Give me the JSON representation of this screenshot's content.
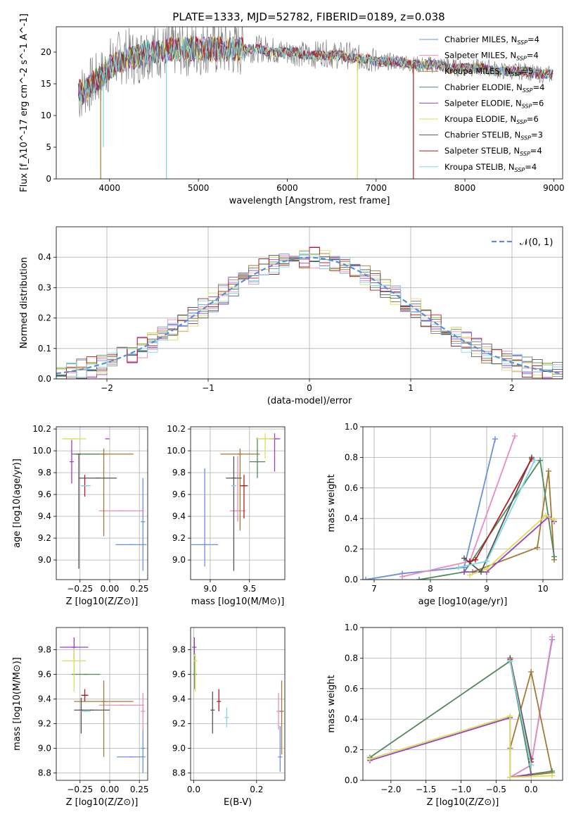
{
  "figure_title": "PLATE=1333, MJD=52782, FIBERID=0189, z=0.038",
  "models": [
    {
      "name": "Chabrier MILES",
      "nssp": "4",
      "color": "#6c8fde"
    },
    {
      "name": "Salpeter MILES",
      "nssp": "4",
      "color": "#e88bc0"
    },
    {
      "name": "Kroupa MILES",
      "nssp": "5",
      "color": "#a27a32"
    },
    {
      "name": "Chabrier ELODIE",
      "nssp": "4",
      "color": "#4f8a5f"
    },
    {
      "name": "Salpeter ELODIE",
      "nssp": "6",
      "color": "#9a3fc0"
    },
    {
      "name": "Kroupa ELODIE",
      "nssp": "6",
      "color": "#d9df5a"
    },
    {
      "name": "Chabrier STELIB",
      "nssp": "3",
      "color": "#555555"
    },
    {
      "name": "Salpeter STELIB",
      "nssp": "4",
      "color": "#b01e1e"
    },
    {
      "name": "Kroupa STELIB",
      "nssp": "4",
      "color": "#7fd8e6"
    }
  ],
  "chart_data": [
    {
      "id": "spectrum",
      "type": "line",
      "xlabel": "wavelength [Angstrom, rest frame]",
      "ylabel": "Flux [f_λ10^-17 erg cm^-2 s^-1 A^-1]",
      "xlim": [
        3400,
        9100
      ],
      "ylim": [
        0,
        24
      ],
      "xticks": [
        4000,
        5000,
        6000,
        7000,
        8000,
        9000
      ],
      "yticks": [
        0,
        5,
        10,
        15,
        20
      ],
      "data_color": "#808080",
      "data_x": [
        3650,
        3700,
        3800,
        3900,
        4000,
        4100,
        4200,
        4300,
        4400,
        4500,
        4600,
        4700,
        4800,
        4900,
        5000,
        5100,
        5200,
        5300,
        5400,
        5500,
        5600,
        5700,
        5800,
        5900,
        6000,
        6100,
        6200,
        6300,
        6400,
        6500,
        6600,
        6700,
        6800,
        6900,
        7000,
        7100,
        7200,
        7300,
        7400,
        7500,
        7600,
        7700,
        7800,
        7900,
        8000,
        8100,
        8200,
        8300,
        8400,
        8500,
        8600,
        8700,
        8800,
        8900,
        9000
      ],
      "data_y": [
        13,
        14,
        15,
        16,
        18,
        19,
        19.5,
        19,
        20,
        20.5,
        20,
        20.5,
        20.5,
        20.5,
        20.5,
        21,
        20.5,
        20.5,
        20.5,
        20.5,
        20.5,
        20.5,
        20.5,
        20,
        20,
        20,
        19.5,
        19.5,
        20,
        19.5,
        19.5,
        19.5,
        19,
        19,
        18.5,
        18.5,
        18.5,
        18.5,
        18,
        18,
        18,
        18,
        18,
        17.5,
        17.5,
        17.5,
        17.5,
        17.5,
        17,
        17,
        17,
        17,
        16.5,
        16.5,
        16.5
      ],
      "model_x": [
        3650,
        3700,
        3800,
        3900,
        4000,
        4100,
        4200,
        4300,
        4400,
        4500,
        4600,
        4700,
        4800,
        4900,
        5000,
        5100,
        5200,
        5300,
        5400,
        5500,
        5600,
        5700,
        5800,
        5900,
        6000,
        6100,
        6200,
        6300,
        6400,
        6500,
        6600,
        6700,
        6800,
        6900,
        7000,
        7100,
        7200,
        7300,
        7400,
        7500,
        7600,
        7700,
        7800,
        7900,
        8000,
        8100,
        8200,
        8300,
        8400,
        8500,
        8600,
        8700,
        8800,
        8900,
        9000
      ],
      "model_y": [
        14,
        13.5,
        15,
        16,
        17.5,
        18.5,
        19,
        19,
        20,
        20,
        20,
        20.5,
        20.5,
        20.5,
        20.5,
        20.5,
        20.5,
        20.5,
        20.5,
        20.5,
        20.5,
        20.5,
        20,
        20,
        20,
        20,
        19.5,
        19.5,
        19.5,
        19.5,
        19.5,
        19,
        19,
        19,
        18.5,
        18.5,
        18.5,
        18.5,
        18,
        18,
        18,
        18,
        17.5,
        17.5,
        17.5,
        17.5,
        17.5,
        17,
        17,
        17,
        17,
        17,
        16.5,
        16.5,
        16.5
      ],
      "dips": [
        {
          "model": 8,
          "x": 3930,
          "y": 5
        },
        {
          "model": 8,
          "x": 4640,
          "y": 0
        },
        {
          "model": 2,
          "x": 3900,
          "y": 0
        },
        {
          "model": 5,
          "x": 6790,
          "y": 0
        },
        {
          "model": 7,
          "x": 7420,
          "y": 0
        }
      ]
    },
    {
      "id": "residuals",
      "type": "line",
      "xlabel": "(data-model)/error",
      "ylabel": "Normed distribution",
      "xlim": [
        -2.5,
        2.5
      ],
      "ylim": [
        0,
        0.5
      ],
      "xticks": [
        -2,
        -1,
        0,
        1,
        2
      ],
      "yticks": [
        0.0,
        0.1,
        0.2,
        0.3,
        0.4
      ],
      "legend": "𝒩(0, 1)",
      "gaussian_color": "#5b8dd6"
    },
    {
      "id": "age_vs_Z",
      "type": "scatter",
      "xlabel": "Z [log10(Z/Z⊙)]",
      "ylabel": "age  [log10(age/yr)]",
      "xlim": [
        -0.45,
        0.32
      ],
      "ylim": [
        8.82,
        10.22
      ],
      "xticks": [
        -0.25,
        0.0,
        0.25
      ],
      "yticks": [
        9.0,
        9.2,
        9.4,
        9.6,
        9.8,
        10.0,
        10.2
      ],
      "points": [
        {
          "model": 0,
          "x": 0.18,
          "y": 9.14,
          "xerr": 0.13,
          "yerr": [
            0,
            0
          ]
        },
        {
          "model": 0,
          "x": 0.28,
          "y": 9.35,
          "xerr": 0.0,
          "yerr": [
            0.45,
            0.4
          ]
        },
        {
          "model": 1,
          "x": 0.1,
          "y": 9.45,
          "xerr": 0.19,
          "yerr": [
            0,
            0
          ]
        },
        {
          "model": 2,
          "x": -0.05,
          "y": 9.97,
          "xerr": 0.25,
          "yerr": [
            0.75,
            0.05
          ]
        },
        {
          "model": 3,
          "x": -0.2,
          "y": 9.97,
          "xerr": 0.12,
          "yerr": [
            0,
            0
          ]
        },
        {
          "model": 4,
          "x": -0.02,
          "y": 10.11,
          "xerr": 0.0,
          "yerr": [
            0.0,
            0.0
          ]
        },
        {
          "model": 4,
          "x": -0.32,
          "y": 9.9,
          "xerr": 0.0,
          "yerr": [
            0.2,
            0.2
          ]
        },
        {
          "model": 5,
          "x": -0.3,
          "y": 10.11,
          "xerr": 0.1,
          "yerr": [
            0,
            0
          ]
        },
        {
          "model": 6,
          "x": -0.26,
          "y": 9.97,
          "xerr": 0.0,
          "yerr": [
            1.05,
            0.0
          ]
        },
        {
          "model": 6,
          "x": -0.1,
          "y": 9.75,
          "xerr": 0.16,
          "yerr": [
            0,
            0
          ]
        },
        {
          "model": 7,
          "x": -0.21,
          "y": 9.68,
          "xerr": 0.03,
          "yerr": [
            0.1,
            0.1
          ]
        },
        {
          "model": 8,
          "x": -0.2,
          "y": 9.68,
          "xerr": 0.04,
          "yerr": [
            0.0,
            0.0
          ]
        }
      ]
    },
    {
      "id": "age_vs_mass",
      "type": "scatter",
      "xlabel": "mass [log10(M/M⊙)]",
      "xlim": [
        8.75,
        9.95
      ],
      "ylim": [
        8.82,
        10.22
      ],
      "xticks": [
        9.0,
        9.5
      ],
      "yticks": [
        9.0,
        9.2,
        9.4,
        9.6,
        9.8,
        10.0,
        10.2
      ],
      "points": [
        {
          "model": 0,
          "x": 8.93,
          "y": 9.14,
          "xerr": 0.17,
          "yerr": [
            0.2,
            0.7
          ]
        },
        {
          "model": 1,
          "x": 9.35,
          "y": 9.45,
          "xerr": 0.1,
          "yerr": [
            0.1,
            0.5
          ]
        },
        {
          "model": 2,
          "x": 9.38,
          "y": 9.97,
          "xerr": 0.25,
          "yerr": [
            0.7,
            0.05
          ]
        },
        {
          "model": 3,
          "x": 9.6,
          "y": 9.9,
          "xerr": 0.1,
          "yerr": [
            0.15,
            0.22
          ]
        },
        {
          "model": 4,
          "x": 9.82,
          "y": 10.11,
          "xerr": 0.07,
          "yerr": [
            0.3,
            0.05
          ]
        },
        {
          "model": 5,
          "x": 9.7,
          "y": 10.11,
          "xerr": 0.12,
          "yerr": [
            0.18,
            0.05
          ]
        },
        {
          "model": 6,
          "x": 9.3,
          "y": 9.75,
          "xerr": 0.1,
          "yerr": [
            0.85,
            0.2
          ]
        },
        {
          "model": 7,
          "x": 9.43,
          "y": 9.68,
          "xerr": 0.05,
          "yerr": [
            0.3,
            0.1
          ]
        },
        {
          "model": 8,
          "x": 9.3,
          "y": 9.68,
          "xerr": 0.03,
          "yerr": [
            0.0,
            0.0
          ]
        }
      ]
    },
    {
      "id": "mass_weight_vs_age",
      "type": "line",
      "xlabel": "age  [log10(age/yr)]",
      "ylabel": "mass weight",
      "xlim": [
        6.8,
        10.35
      ],
      "ylim": [
        0,
        1
      ],
      "xticks": [
        7,
        8,
        9,
        10
      ],
      "yticks": [
        0.0,
        0.2,
        0.4,
        0.6,
        0.8,
        1.0
      ],
      "series": [
        {
          "model": 0,
          "x": [
            6.85,
            7.5,
            8.6,
            9.15
          ],
          "y": [
            0.0,
            0.04,
            0.08,
            0.92
          ]
        },
        {
          "model": 1,
          "x": [
            7.5,
            8.7,
            9.5
          ],
          "y": [
            0.02,
            0.12,
            0.94
          ]
        },
        {
          "model": 2,
          "x": [
            8.75,
            9.9,
            10.1,
            10.2
          ],
          "y": [
            0.05,
            0.21,
            0.71,
            0.13
          ]
        },
        {
          "model": 3,
          "x": [
            7.8,
            8.6,
            9.95,
            10.2
          ],
          "y": [
            0.0,
            0.05,
            0.78,
            0.15
          ]
        },
        {
          "model": 4,
          "x": [
            8.6,
            9.0,
            10.1,
            10.2
          ],
          "y": [
            0.05,
            0.05,
            0.41,
            0.38
          ]
        },
        {
          "model": 5,
          "x": [
            8.7,
            9.0,
            10.05,
            10.2
          ],
          "y": [
            0.03,
            0.07,
            0.42,
            0.39
          ]
        },
        {
          "model": 6,
          "x": [
            8.6,
            8.9,
            9.8
          ],
          "y": [
            0.14,
            0.05,
            0.8
          ]
        },
        {
          "model": 7,
          "x": [
            8.7,
            8.8,
            9.8
          ],
          "y": [
            0.12,
            0.13,
            0.79
          ]
        },
        {
          "model": 8,
          "x": [
            8.5,
            9.0,
            9.85
          ],
          "y": [
            0.08,
            0.12,
            0.78
          ]
        }
      ]
    },
    {
      "id": "mass_vs_Z",
      "type": "scatter",
      "xlabel": "Z [log10(Z/Z⊙)]",
      "ylabel": "mass [log10(M/M⊙)]",
      "xlim": [
        -0.45,
        0.32
      ],
      "ylim": [
        8.74,
        9.98
      ],
      "xticks": [
        -0.25,
        0.0,
        0.25
      ],
      "yticks": [
        8.8,
        9.0,
        9.2,
        9.4,
        9.6,
        9.8
      ],
      "points": [
        {
          "model": 0,
          "x": 0.18,
          "y": 8.93,
          "xerr": 0.12,
          "yerr": [
            0.0,
            0.0
          ]
        },
        {
          "model": 0,
          "x": 0.28,
          "y": 9.0,
          "xerr": 0.0,
          "yerr": [
            0.2,
            0.15
          ]
        },
        {
          "model": 1,
          "x": 0.1,
          "y": 9.35,
          "xerr": 0.19,
          "yerr": [
            0,
            0
          ]
        },
        {
          "model": 1,
          "x": 0.28,
          "y": 9.3,
          "xerr": 0.0,
          "yerr": [
            0.15,
            0.15
          ]
        },
        {
          "model": 2,
          "x": -0.05,
          "y": 9.38,
          "xerr": 0.25,
          "yerr": [
            0.45,
            0.17
          ]
        },
        {
          "model": 3,
          "x": -0.2,
          "y": 9.6,
          "xerr": 0.12,
          "yerr": [
            0,
            0
          ]
        },
        {
          "model": 4,
          "x": -0.3,
          "y": 9.82,
          "xerr": 0.12,
          "yerr": [
            0.1,
            0.08
          ]
        },
        {
          "model": 5,
          "x": -0.3,
          "y": 9.71,
          "xerr": 0.1,
          "yerr": [
            0.25,
            0.1
          ]
        },
        {
          "model": 6,
          "x": -0.15,
          "y": 9.31,
          "xerr": 0.15,
          "yerr": [
            0,
            0
          ]
        },
        {
          "model": 6,
          "x": -0.24,
          "y": 9.31,
          "xerr": 0.0,
          "yerr": [
            0.19,
            0.1
          ]
        },
        {
          "model": 7,
          "x": -0.21,
          "y": 9.43,
          "xerr": 0.03,
          "yerr": [
            0.05,
            0.05
          ]
        },
        {
          "model": 8,
          "x": -0.2,
          "y": 9.3,
          "xerr": 0.04,
          "yerr": [
            0.0,
            0.0
          ]
        }
      ]
    },
    {
      "id": "mass_vs_ebv",
      "type": "scatter",
      "xlabel": "E(B-V)",
      "xlim": [
        -0.01,
        0.29
      ],
      "ylim": [
        8.74,
        9.98
      ],
      "xticks": [
        0.0,
        0.2
      ],
      "yticks": [
        8.8,
        9.0,
        9.2,
        9.4,
        9.6,
        9.8
      ],
      "points": [
        {
          "model": 0,
          "x": 0.275,
          "y": 8.93,
          "xerr": 0,
          "yerr": [
            0.12,
            0.25
          ]
        },
        {
          "model": 1,
          "x": 0.27,
          "y": 9.3,
          "xerr": 0,
          "yerr": [
            0.15,
            0.15
          ]
        },
        {
          "model": 2,
          "x": 0.28,
          "y": 9.3,
          "xerr": 0,
          "yerr": [
            0.35,
            0.25
          ]
        },
        {
          "model": 3,
          "x": 0.003,
          "y": 9.6,
          "xerr": 0,
          "yerr": [
            0.12,
            0.15
          ]
        },
        {
          "model": 4,
          "x": 0.002,
          "y": 9.82,
          "xerr": 0,
          "yerr": [
            0.06,
            0.08
          ]
        },
        {
          "model": 5,
          "x": 0.005,
          "y": 9.71,
          "xerr": 0,
          "yerr": [
            0.25,
            0.06
          ]
        },
        {
          "model": 6,
          "x": 0.06,
          "y": 9.31,
          "xerr": 0,
          "yerr": [
            0.19,
            0.15
          ]
        },
        {
          "model": 7,
          "x": 0.08,
          "y": 9.38,
          "xerr": 0,
          "yerr": [
            0.08,
            0.1
          ]
        },
        {
          "model": 8,
          "x": 0.105,
          "y": 9.25,
          "xerr": 0,
          "yerr": [
            0.08,
            0.08
          ]
        }
      ]
    },
    {
      "id": "mass_weight_vs_Z",
      "type": "line",
      "xlabel": "Z [log10(Z/Z⊙)]",
      "ylabel": "mass weight",
      "xlim": [
        -2.4,
        0.45
      ],
      "ylim": [
        0,
        1
      ],
      "xticks": [
        -2.0,
        -1.5,
        -1.0,
        -0.5,
        0.0
      ],
      "yticks": [
        0.0,
        0.2,
        0.4,
        0.6,
        0.8,
        1.0
      ],
      "series": [
        {
          "model": 0,
          "x": [
            -0.3,
            0.0,
            0.3
          ],
          "y": [
            0.02,
            0.1,
            0.92
          ]
        },
        {
          "model": 1,
          "x": [
            -0.3,
            0.0,
            0.3
          ],
          "y": [
            0.02,
            0.1,
            0.94
          ]
        },
        {
          "model": 2,
          "x": [
            -0.3,
            0.0,
            0.3,
            -0.3
          ],
          "y": [
            0.21,
            0.71,
            0.05,
            0.02
          ]
        },
        {
          "model": 3,
          "x": [
            -2.3,
            -0.3,
            0.0,
            0.3
          ],
          "y": [
            0.15,
            0.78,
            0.04,
            0.06
          ]
        },
        {
          "model": 4,
          "x": [
            -2.3,
            -0.3,
            -0.3,
            0.0
          ],
          "y": [
            0.13,
            0.41,
            0.02,
            0.04
          ]
        },
        {
          "model": 5,
          "x": [
            -2.3,
            -0.3,
            -0.3,
            0.3
          ],
          "y": [
            0.14,
            0.42,
            0.02,
            0.03
          ]
        },
        {
          "model": 6,
          "x": [
            -0.3,
            0.0
          ],
          "y": [
            0.8,
            0.14
          ]
        },
        {
          "model": 7,
          "x": [
            -0.3,
            0.0
          ],
          "y": [
            0.79,
            0.12
          ]
        },
        {
          "model": 8,
          "x": [
            -0.3,
            0.0
          ],
          "y": [
            0.78,
            0.1
          ]
        }
      ]
    }
  ]
}
